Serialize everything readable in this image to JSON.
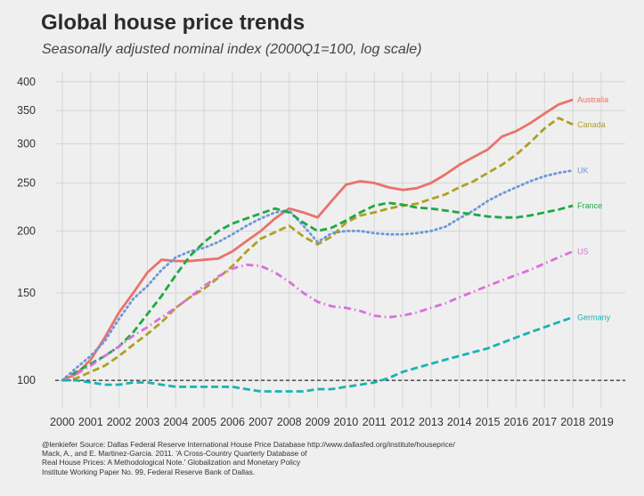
{
  "title": "Global house price trends",
  "subtitle": "Seasonally adjusted nominal index (2000Q1=100, log scale)",
  "caption_lines": [
    "@lenkiefer Source: Dallas Federal Reserve International House Price Database  http://www.dallasfed.org/institute/houseprice/",
    "Mack, A., and E. Martinez-Garcia. 2011. 'A Cross-Country Quarterly Database of",
    "Real House Prices: A Methodological Note.' Globalization and Monetary Policy",
    "Institute Working Paper No. 99, Federal Reserve Bank of Dallas."
  ],
  "chart_data": {
    "type": "line",
    "title": "Global house price trends",
    "subtitle": "Seasonally adjusted nominal index (2000Q1=100, log scale)",
    "xlabel": "",
    "ylabel": "",
    "y_scale": "log",
    "grid": true,
    "legend": "direct labels at line ends (right)",
    "xlim": [
      1999.75,
      2019.85
    ],
    "ylim": [
      88,
      420
    ],
    "x_ticks": [
      "2000",
      "2001",
      "2002",
      "2003",
      "2004",
      "2005",
      "2006",
      "2007",
      "2008",
      "2009",
      "2010",
      "2011",
      "2012",
      "2013",
      "2014",
      "2015",
      "2016",
      "2017",
      "2018",
      "2019"
    ],
    "y_ticks": [
      100,
      150,
      200,
      250,
      300,
      350,
      400
    ],
    "reference_line": {
      "y": 100,
      "style": "dashed",
      "color": "#000000"
    },
    "x": [
      2000,
      2000.5,
      2001,
      2001.5,
      2002,
      2002.5,
      2003,
      2003.5,
      2004,
      2004.5,
      2005,
      2005.5,
      2006,
      2006.5,
      2007,
      2007.5,
      2008,
      2008.5,
      2009,
      2009.5,
      2010,
      2010.5,
      2011,
      2011.5,
      2012,
      2012.5,
      2013,
      2013.5,
      2014,
      2014.5,
      2015,
      2015.5,
      2016,
      2016.5,
      2017,
      2017.5,
      2018
    ],
    "series": [
      {
        "name": "Australia",
        "color": "#e8736b",
        "dash": "solid",
        "values": [
          100,
          103,
          110,
          122,
          137,
          150,
          165,
          175,
          174,
          174,
          175,
          176,
          182,
          191,
          200,
          212,
          222,
          218,
          213,
          230,
          248,
          252,
          250,
          245,
          242,
          244,
          250,
          260,
          272,
          282,
          292,
          310,
          318,
          330,
          345,
          360,
          368
        ]
      },
      {
        "name": "Canada",
        "color": "#b0a020",
        "dash": "dashed",
        "values": [
          100,
          101,
          104,
          107,
          112,
          118,
          124,
          131,
          140,
          147,
          153,
          161,
          170,
          182,
          193,
          199,
          205,
          195,
          188,
          195,
          208,
          215,
          218,
          222,
          225,
          227,
          232,
          237,
          245,
          252,
          262,
          272,
          285,
          302,
          322,
          338,
          328
        ]
      },
      {
        "name": "UK",
        "color": "#6f96d9",
        "dash": "dotted",
        "values": [
          100,
          106,
          112,
          120,
          133,
          146,
          155,
          167,
          177,
          182,
          185,
          190,
          197,
          205,
          212,
          218,
          220,
          205,
          190,
          198,
          200,
          200,
          198,
          197,
          197,
          198,
          200,
          204,
          212,
          220,
          230,
          238,
          245,
          252,
          258,
          262,
          265
        ]
      },
      {
        "name": "France",
        "color": "#1fa844",
        "dash": "dashed",
        "values": [
          100,
          104,
          108,
          112,
          117,
          125,
          136,
          148,
          163,
          178,
          190,
          200,
          207,
          212,
          217,
          222,
          218,
          208,
          200,
          203,
          210,
          218,
          225,
          228,
          226,
          223,
          222,
          220,
          218,
          216,
          214,
          213,
          213,
          215,
          218,
          221,
          225
        ]
      },
      {
        "name": "US",
        "color": "#dc6fdb",
        "dash": "dashdot",
        "values": [
          100,
          103,
          107,
          112,
          117,
          123,
          128,
          134,
          140,
          147,
          155,
          162,
          168,
          171,
          170,
          165,
          158,
          150,
          144,
          141,
          140,
          138,
          135,
          134,
          135,
          137,
          140,
          143,
          147,
          151,
          155,
          159,
          163,
          167,
          172,
          177,
          182
        ]
      },
      {
        "name": "Germany",
        "color": "#19b3b3",
        "dash": "dashed",
        "values": [
          100,
          100,
          99,
          98,
          98,
          99,
          99,
          98,
          97,
          97,
          97,
          97,
          97,
          96,
          95,
          95,
          95,
          95,
          96,
          96,
          97,
          98,
          99,
          101,
          104,
          106,
          108,
          110,
          112,
          114,
          116,
          119,
          122,
          125,
          128,
          131,
          134
        ]
      }
    ]
  }
}
